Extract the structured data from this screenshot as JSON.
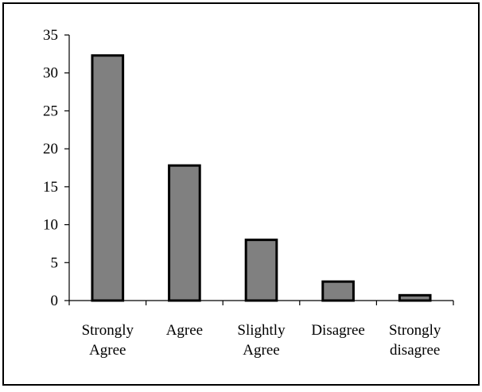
{
  "chart_data": {
    "type": "bar",
    "title": "",
    "xlabel": "",
    "ylabel": "",
    "categories": [
      [
        "Strongly",
        "Agree"
      ],
      [
        "Agree"
      ],
      [
        "Slightly",
        "Agree"
      ],
      [
        "Disagree"
      ],
      [
        "Strongly",
        "disagree"
      ]
    ],
    "values": [
      32.3,
      17.8,
      8.0,
      2.5,
      0.7
    ],
    "ylim": [
      0,
      35
    ],
    "yticks": [
      0,
      5,
      10,
      15,
      20,
      25,
      30,
      35
    ],
    "grid": false,
    "legend": "none",
    "colors": {
      "bar_fill": "#808080",
      "bar_stroke": "#000000",
      "axis": "#000000",
      "frame": "#000000",
      "background": "#ffffff"
    }
  }
}
